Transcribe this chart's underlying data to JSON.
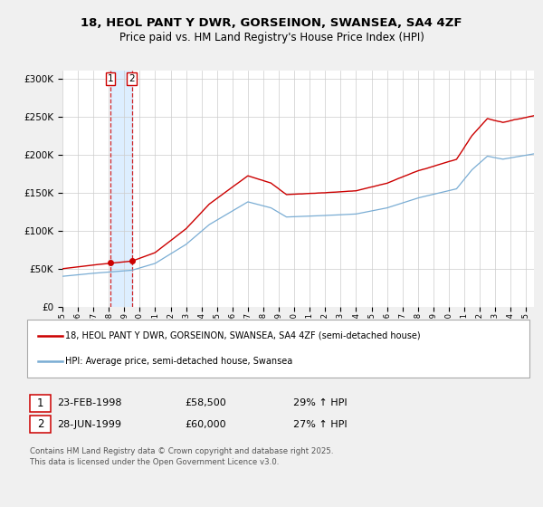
{
  "title1": "18, HEOL PANT Y DWR, GORSEINON, SWANSEA, SA4 4ZF",
  "title2": "Price paid vs. HM Land Registry's House Price Index (HPI)",
  "legend_line1": "18, HEOL PANT Y DWR, GORSEINON, SWANSEA, SA4 4ZF (semi-detached house)",
  "legend_line2": "HPI: Average price, semi-detached house, Swansea",
  "transaction1_date": "23-FEB-1998",
  "transaction1_price": "£58,500",
  "transaction1_hpi": "29% ↑ HPI",
  "transaction1_date_val": 1998.12,
  "transaction1_price_val": 58500,
  "transaction2_date": "28-JUN-1999",
  "transaction2_price": "£60,000",
  "transaction2_hpi": "27% ↑ HPI",
  "transaction2_date_val": 1999.49,
  "transaction2_price_val": 60000,
  "red_color": "#cc0000",
  "blue_color": "#7aadd4",
  "shade_color": "#ddeeff",
  "background_color": "#f0f0f0",
  "plot_bg_color": "#ffffff",
  "footer": "Contains HM Land Registry data © Crown copyright and database right 2025.\nThis data is licensed under the Open Government Licence v3.0.",
  "xmin": 1995.0,
  "xmax": 2025.5,
  "ymin": 0,
  "ymax": 310000
}
